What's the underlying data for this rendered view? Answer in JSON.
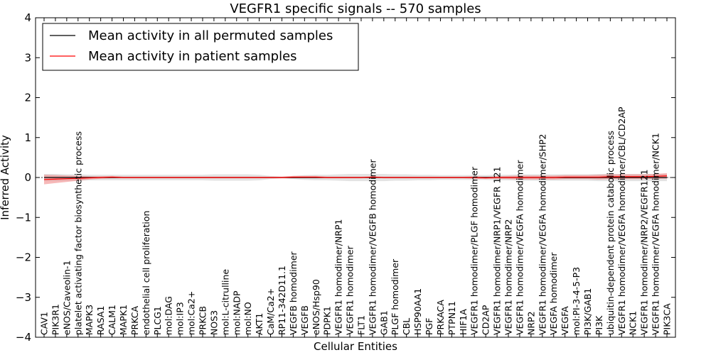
{
  "chart_data": {
    "type": "line",
    "title": "VEGFR1 specific signals -- 570 samples",
    "xlabel": "Cellular Entities",
    "ylabel": "Inferred Activity",
    "ylim": [
      -4,
      4
    ],
    "yticks": [
      -4,
      -3,
      -2,
      -1,
      0,
      1,
      2,
      3,
      4
    ],
    "ytick_labels": [
      "−4",
      "−3",
      "−2",
      "−1",
      "0",
      "1",
      "2",
      "3",
      "4"
    ],
    "grid": false,
    "legend_position": "top-left",
    "categories": [
      "CAV1",
      "PIK3R1",
      "eNOS/Caveolin-1",
      "platelet activating factor biosynthetic process",
      "MAPK3",
      "RASA1",
      "CALM1",
      "MAPK1",
      "PRKCA",
      "endothelial cell proliferation",
      "PLCG1",
      "mol:DAG",
      "mol:IP3",
      "mol:Ca2+",
      "PRKCB",
      "NOS3",
      "mol:L-citrulline",
      "mol:NADP",
      "mol:NO",
      "AKT1",
      "CaM/Ca2+",
      "RP11-342D11.1",
      "VEGFB homodimer",
      "VEGFB",
      "eNOS/Hsp90",
      "PDPK1",
      "VEGFR1 homodimer/NRP1",
      "VEGFR1 homodimer",
      "FLT1",
      "VEGFR1 homodimer/VEGFB homodimer",
      "GAB1",
      "PLGF homodimer",
      "CBL",
      "HSP90AA1",
      "PGF",
      "PRKACA",
      "PTPN11",
      "HIF1A",
      "VEGFR1 homodimer/PLGF homodimer",
      "CD2AP",
      "VEGFR1 homodimer/NRP1/VEGFR 121",
      "VEGFR1 homodimer/NRP2",
      "VEGFR1 homodimer/VEGFA homodimer",
      "NRP2",
      "VEGFR1 homodimer/VEGFA homodimer/SHP2",
      "VEGFA homodimer",
      "VEGFA",
      "mol:PI-3-4-5-P3",
      "PI3K/GAB1",
      "PI3K",
      "ubiquitin-dependent protein catabolic process",
      "VEGFR1 homodimer/VEGFA homodimer/CBL/CD2AP",
      "NCK1",
      "VEGFR1 homodimer/NRP2/VEGFR121",
      "VEGFR1 homodimer/VEGFA homodimer/NCK1",
      "PIK3CA"
    ],
    "series": [
      {
        "name": "Mean activity in all permuted samples",
        "color": "#000000",
        "band_color": "#d0d0d0",
        "values": [
          0,
          0,
          0,
          0,
          0,
          0,
          0,
          0,
          0,
          0,
          0,
          0,
          0,
          0,
          0,
          0,
          0,
          0,
          0,
          0,
          0,
          0,
          0,
          0,
          0,
          0,
          0,
          0,
          0,
          0,
          0,
          0,
          0,
          0,
          0,
          0,
          0,
          0,
          0,
          0,
          0,
          0,
          0,
          0,
          0,
          0,
          0,
          0,
          0,
          0,
          0,
          0,
          0,
          0,
          0,
          0
        ],
        "band_half_width": [
          0.09,
          0.09,
          0.08,
          0.08,
          0.07,
          0.07,
          0.07,
          0.07,
          0.07,
          0.07,
          0.07,
          0.07,
          0.07,
          0.07,
          0.07,
          0.08,
          0.08,
          0.08,
          0.08,
          0.07,
          0.04,
          0.02,
          0.04,
          0.06,
          0.07,
          0.07,
          0.08,
          0.09,
          0.09,
          0.09,
          0.09,
          0.08,
          0.08,
          0.07,
          0.07,
          0.06,
          0.06,
          0.06,
          0.06,
          0.06,
          0.07,
          0.07,
          0.08,
          0.08,
          0.08,
          0.08,
          0.08,
          0.08,
          0.08,
          0.09,
          0.09,
          0.09,
          0.09,
          0.09,
          0.09,
          0.09
        ]
      },
      {
        "name": "Mean activity in patient samples",
        "color": "#ff0000",
        "band_color": "#f08080",
        "values": [
          -0.05,
          -0.04,
          -0.03,
          -0.02,
          -0.01,
          0,
          0.01,
          0,
          0,
          0,
          0,
          0,
          0,
          0,
          0,
          0,
          0,
          0,
          0,
          0,
          0,
          0,
          0.01,
          0.01,
          0.01,
          0,
          0,
          0,
          0,
          0.01,
          0,
          0,
          0,
          0,
          0,
          0,
          0,
          0,
          0,
          -0.01,
          0,
          0,
          0,
          0,
          0,
          0,
          0.01,
          0.01,
          0.01,
          0.01,
          0.02,
          0.02,
          0.02,
          0.02,
          0.03,
          0.04
        ],
        "band_half_width": [
          0.12,
          0.1,
          0.08,
          0.06,
          0.04,
          0.03,
          0.03,
          0.02,
          0.02,
          0.02,
          0.02,
          0.02,
          0.02,
          0.02,
          0.02,
          0.02,
          0.02,
          0.02,
          0.02,
          0.02,
          0.02,
          0.02,
          0.03,
          0.03,
          0.03,
          0.02,
          0.02,
          0.02,
          0.02,
          0.02,
          0.02,
          0.02,
          0.02,
          0.02,
          0.02,
          0.02,
          0.02,
          0.02,
          0.03,
          0.03,
          0.03,
          0.04,
          0.05,
          0.05,
          0.05,
          0.05,
          0.05,
          0.05,
          0.05,
          0.06,
          0.06,
          0.06,
          0.06,
          0.06,
          0.06,
          0.07
        ]
      }
    ]
  }
}
